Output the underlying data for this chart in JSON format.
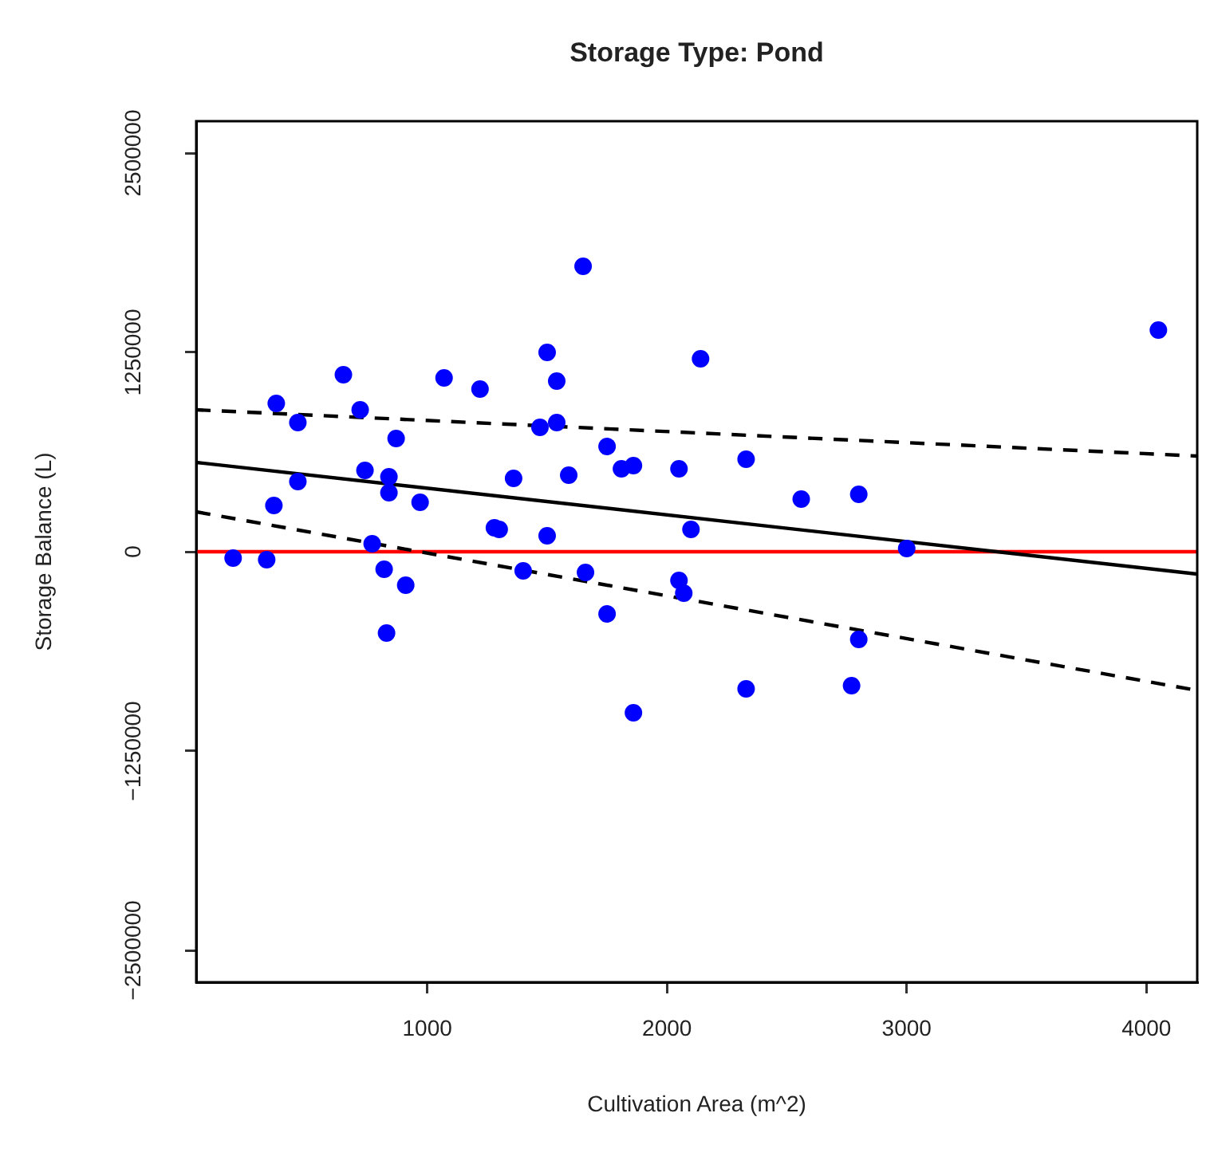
{
  "chart_data": {
    "type": "scatter",
    "title": "Storage Type: Pond",
    "xlabel": "Cultivation Area (m^2)",
    "ylabel": "Storage Balance (L)",
    "xlim": [
      36,
      4212
    ],
    "xticks": [
      1000,
      2000,
      3000,
      4000
    ],
    "ylim": [
      -2700000,
      2700000
    ],
    "yticks": [
      -2500000,
      -1250000,
      0,
      1250000,
      2500000
    ],
    "grid": false,
    "legend": false,
    "ref_lines": [
      {
        "axis": "y",
        "value": 0,
        "color": "#ff0000"
      }
    ],
    "series": [
      {
        "color": "#0000ff",
        "marker": "circle",
        "x": [
          1650,
          1500,
          650,
          1070,
          1220,
          1540,
          370,
          720,
          460,
          1470,
          1540,
          870,
          1750,
          1810,
          1860,
          2050,
          1590,
          1360,
          740,
          840,
          460,
          840,
          970,
          360,
          1280,
          1300,
          1500,
          770,
          190,
          330,
          820,
          1400,
          1660,
          910,
          2050,
          2070,
          1750,
          830,
          1860,
          2100,
          2140,
          4050,
          2330,
          2560,
          2800,
          3000,
          2800,
          2330,
          2770
        ],
        "values": [
          1790000,
          1250000,
          1110000,
          1090000,
          1020000,
          1070000,
          930000,
          890000,
          810000,
          780000,
          810000,
          710000,
          660000,
          520000,
          540000,
          520000,
          480000,
          460000,
          510000,
          470000,
          440000,
          370000,
          310000,
          290000,
          150000,
          140000,
          100000,
          50000,
          -40000,
          -50000,
          -110000,
          -120000,
          -130000,
          -210000,
          -180000,
          -260000,
          -390000,
          -510000,
          -1010000,
          140000,
          1210000,
          1390000,
          580000,
          330000,
          360000,
          20000,
          -550000,
          -860000,
          -840000
        ]
      },
      {
        "type": "line",
        "color": "#000000",
        "marker": "none",
        "line_style": "solid",
        "x": [
          36,
          4212
        ],
        "values": [
          560000,
          -140000
        ]
      },
      {
        "type": "line",
        "color": "#000000",
        "marker": "none",
        "line_style": "dashed",
        "x": [
          36,
          4212
        ],
        "values": [
          890000,
          600000
        ]
      },
      {
        "type": "line",
        "color": "#000000",
        "marker": "none",
        "line_style": "dashed",
        "x": [
          36,
          4212
        ],
        "values": [
          250000,
          -870000
        ]
      }
    ]
  }
}
